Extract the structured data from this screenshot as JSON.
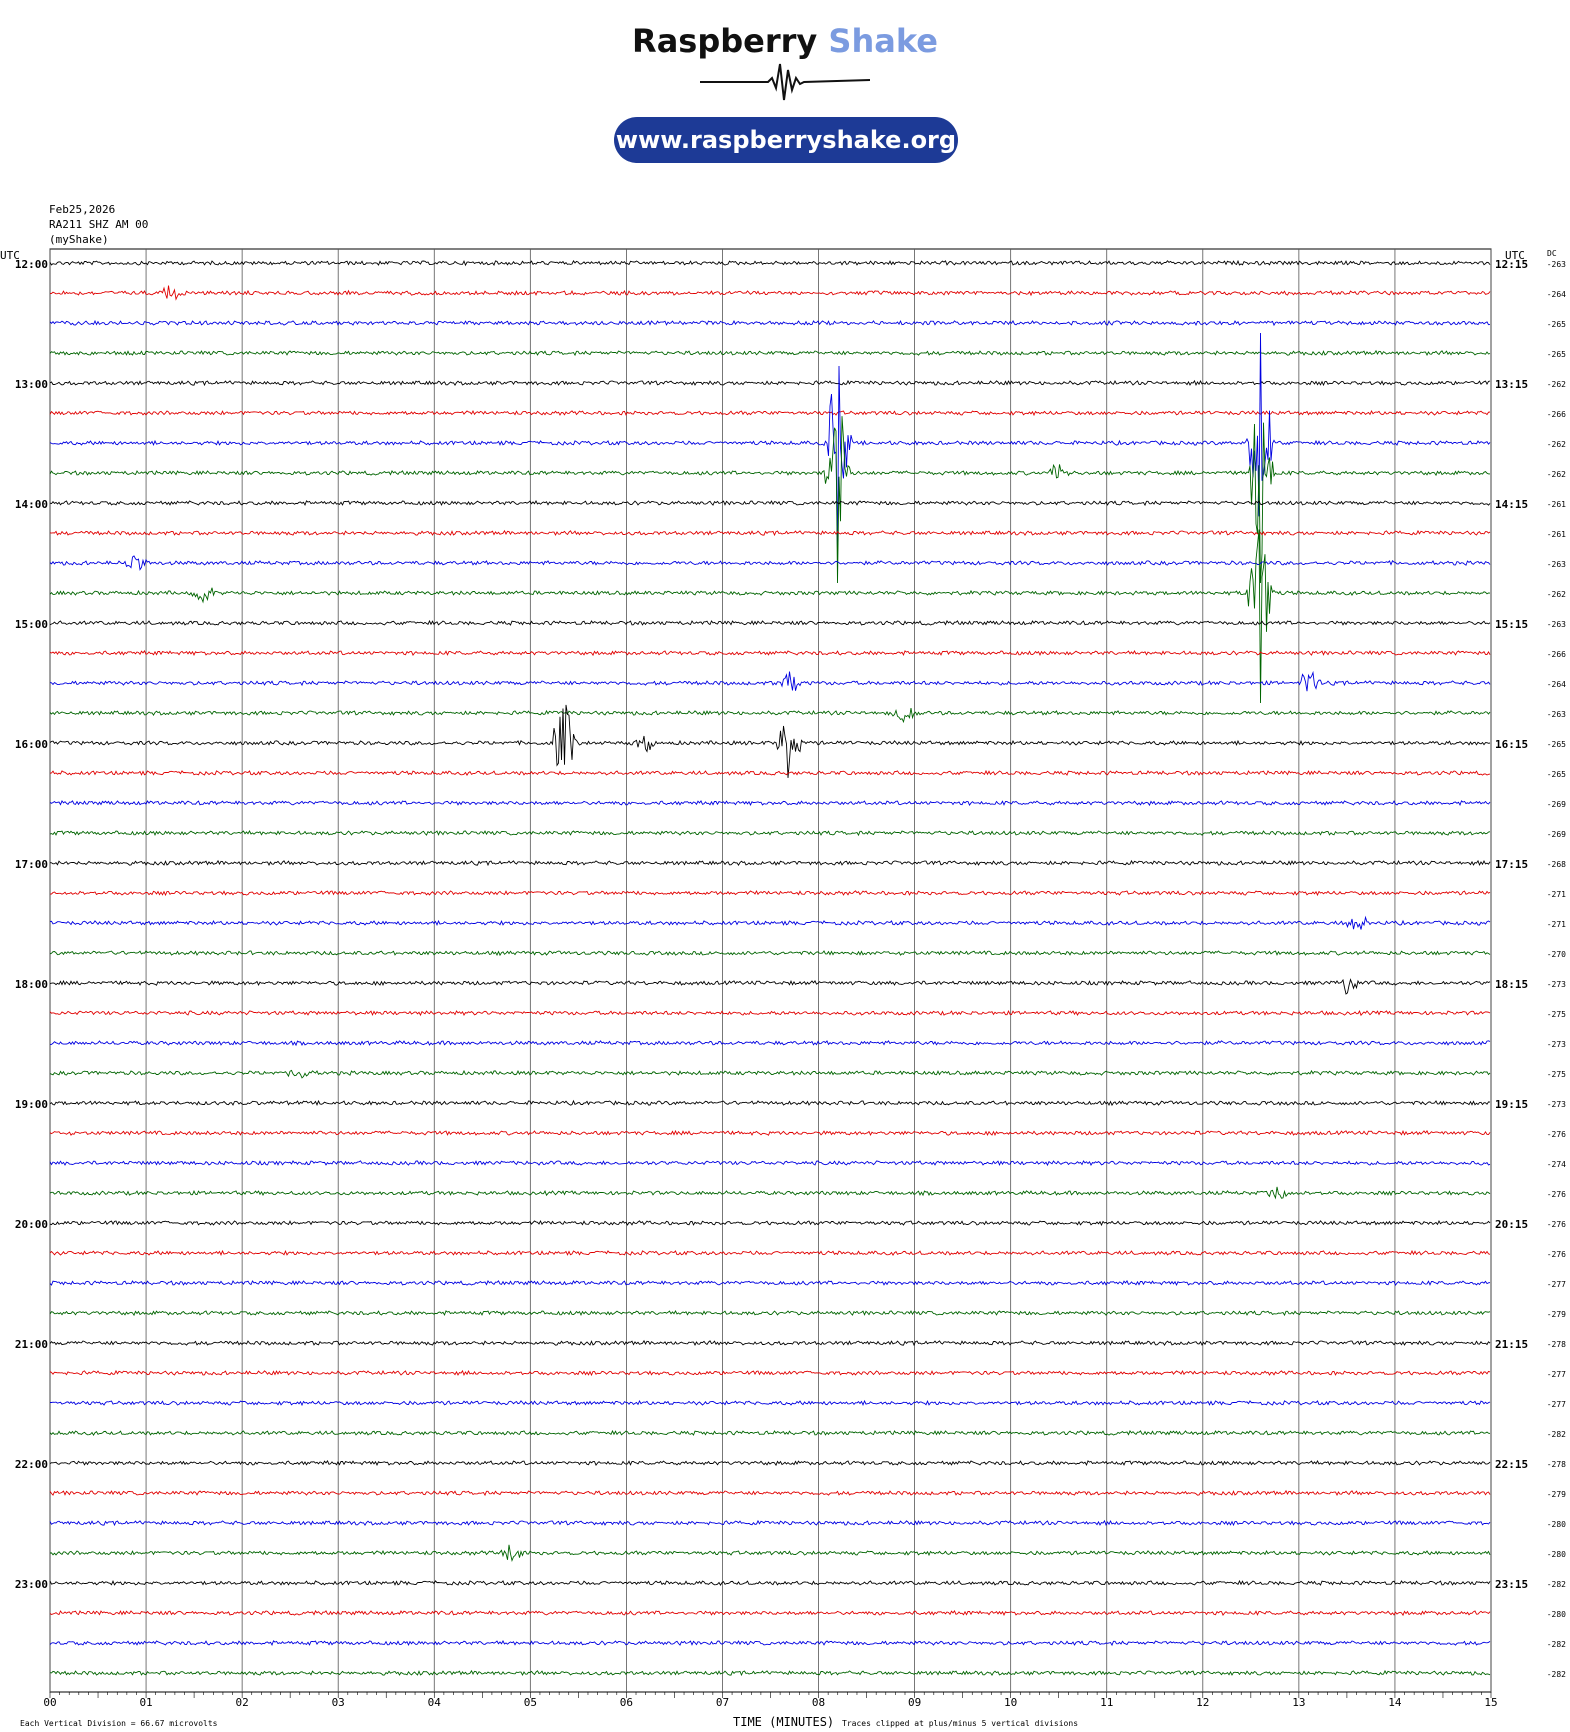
{
  "logo": {
    "brand_part1": "Raspberry",
    "brand_part2": "Shake",
    "url": "www.raspberryshake.org",
    "colors": {
      "part1": "#111111",
      "part2": "#7b9be0",
      "pill": "#1d3a96"
    }
  },
  "header": {
    "date": "Feb25,2026",
    "station": "RA211 SHZ AM 00",
    "network": "(myShake)"
  },
  "axis_labels": {
    "left_unit": "UTC",
    "right_unit": "UTC",
    "dc_label": "DC",
    "x_title": "TIME (MINUTES)",
    "footer_left": "Each Vertical Division =   66.67 microvolts",
    "footer_right": "Traces clipped at plus/minus 5 vertical divisions"
  },
  "chart_data": {
    "type": "line",
    "title": "",
    "xlabel": "TIME (MINUTES)",
    "x_ticks": [
      "00",
      "01",
      "02",
      "03",
      "04",
      "05",
      "06",
      "07",
      "08",
      "09",
      "10",
      "11",
      "12",
      "13",
      "14",
      "15"
    ],
    "xlim": [
      0,
      15
    ],
    "grid": true,
    "trace_colors": [
      "#000000",
      "#e00000",
      "#0000e0",
      "#006400"
    ],
    "left_hour_labels": [
      "12:00",
      "13:00",
      "14:00",
      "15:00",
      "16:00",
      "17:00",
      "18:00",
      "19:00",
      "20:00",
      "21:00",
      "22:00",
      "23:00"
    ],
    "right_hour_labels": [
      "12:15",
      "13:15",
      "14:15",
      "15:15",
      "16:15",
      "17:15",
      "18:15",
      "19:15",
      "20:15",
      "21:15",
      "22:15",
      "23:15"
    ],
    "dc_offsets": [
      -263,
      -264,
      -265,
      -265,
      -262,
      -266,
      -262,
      -262,
      -261,
      -261,
      -263,
      -262,
      -263,
      -266,
      -264,
      -263,
      -265,
      -265,
      -269,
      -269,
      -268,
      -271,
      -271,
      -270,
      -273,
      -275,
      -273,
      -275,
      -273,
      -276,
      -274,
      -276,
      -276,
      -276,
      -277,
      -279,
      -278,
      -277,
      -277,
      -282,
      -278,
      -279,
      -280,
      -280,
      -282,
      -280,
      -282,
      -282
    ],
    "events": [
      {
        "trace": 1,
        "minute": 1.25,
        "amplitude": 0.5
      },
      {
        "trace": 6,
        "minute": 8.2,
        "amplitude": 5
      },
      {
        "trace": 6,
        "minute": 12.6,
        "amplitude": 5
      },
      {
        "trace": 7,
        "minute": 8.2,
        "amplitude": 5
      },
      {
        "trace": 7,
        "minute": 10.5,
        "amplitude": 0.6
      },
      {
        "trace": 7,
        "minute": 12.6,
        "amplitude": 5
      },
      {
        "trace": 10,
        "minute": 0.9,
        "amplitude": 0.5
      },
      {
        "trace": 11,
        "minute": 1.6,
        "amplitude": 0.7
      },
      {
        "trace": 11,
        "minute": 12.6,
        "amplitude": 5
      },
      {
        "trace": 14,
        "minute": 7.7,
        "amplitude": 0.7
      },
      {
        "trace": 14,
        "minute": 13.1,
        "amplitude": 0.8
      },
      {
        "trace": 15,
        "minute": 8.9,
        "amplitude": 0.7
      },
      {
        "trace": 16,
        "minute": 5.35,
        "amplitude": 2.5
      },
      {
        "trace": 16,
        "minute": 6.2,
        "amplitude": 0.6
      },
      {
        "trace": 16,
        "minute": 7.7,
        "amplitude": 2.5
      },
      {
        "trace": 22,
        "minute": 13.6,
        "amplitude": 0.6
      },
      {
        "trace": 24,
        "minute": 13.5,
        "amplitude": 0.8
      },
      {
        "trace": 27,
        "minute": 2.6,
        "amplitude": 0.4
      },
      {
        "trace": 31,
        "minute": 12.8,
        "amplitude": 0.5
      },
      {
        "trace": 43,
        "minute": 4.8,
        "amplitude": 0.5
      }
    ]
  }
}
